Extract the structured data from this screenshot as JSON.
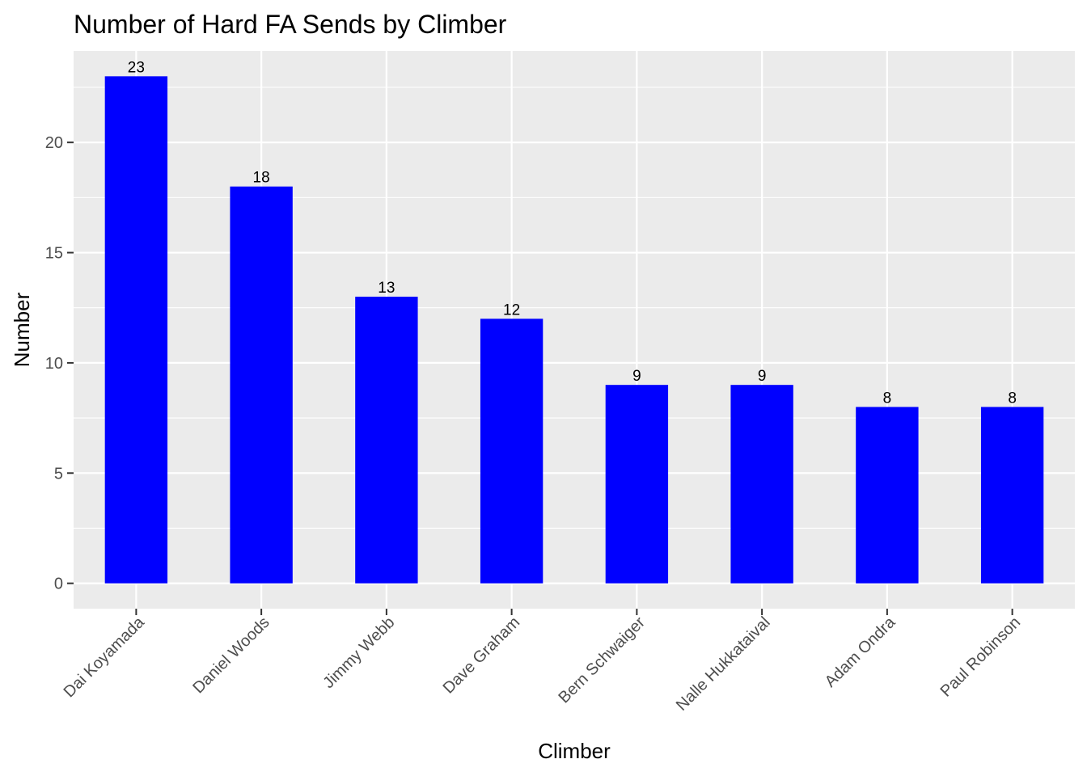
{
  "chart_data": {
    "type": "bar",
    "title": "Number of Hard FA Sends by Climber",
    "xlabel": "Climber",
    "ylabel": "Number",
    "categories": [
      "Dai Koyamada",
      "Daniel Woods",
      "Jimmy Webb",
      "Dave Graham",
      "Bern Schwaiger",
      "Nalle Hukkataival",
      "Adam Ondra",
      "Paul Robinson"
    ],
    "values": [
      23,
      18,
      13,
      12,
      9,
      9,
      8,
      8
    ],
    "y_ticks": [
      0,
      5,
      10,
      15,
      20
    ],
    "ylim": [
      -1.15,
      24.15
    ],
    "bar_color": "#0000ff",
    "panel_color": "#ebebeb",
    "grid": true,
    "data_labels": true
  }
}
